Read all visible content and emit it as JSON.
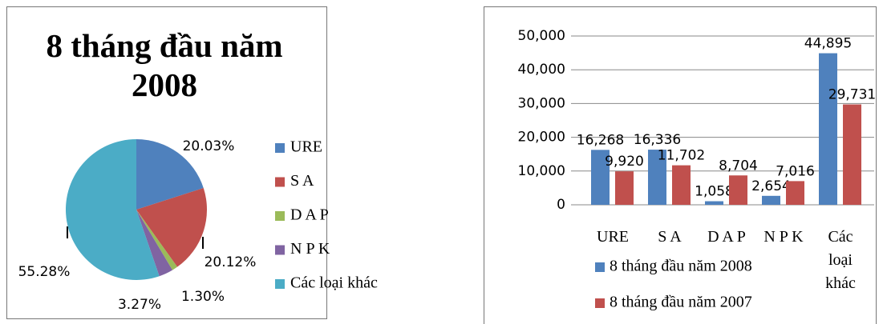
{
  "chart_data": [
    {
      "type": "pie",
      "title": "8 tháng đầu năm 2008",
      "categories": [
        "URE",
        "S A",
        "D A P",
        "N P K",
        "Các loại khác"
      ],
      "values": [
        20.03,
        20.12,
        1.3,
        3.27,
        55.28
      ],
      "value_labels": [
        "20.03%",
        "20.12%",
        "1.30%",
        "3.27%",
        "55.28%"
      ],
      "colors": [
        "#4F81BD",
        "#C0504D",
        "#9BBB59",
        "#8064A2",
        "#4BACC6"
      ],
      "legend": "right"
    },
    {
      "type": "bar",
      "categories": [
        "URE",
        "S A",
        "D A P",
        "N P K",
        "Các loại khác"
      ],
      "series": [
        {
          "name": "8 tháng đầu năm 2008",
          "color": "#4F81BD",
          "values": [
            16268,
            16336,
            1058,
            2654,
            44895
          ],
          "value_labels": [
            "16,268",
            "16,336",
            "1,058",
            "2,654",
            "44,895"
          ]
        },
        {
          "name": "8 tháng đầu năm 2007",
          "color": "#C0504D",
          "values": [
            9920,
            11702,
            8704,
            7016,
            29731
          ],
          "value_labels": [
            "9,920",
            "11,702",
            "8,704",
            "7,016",
            "29,731"
          ]
        }
      ],
      "ylim": [
        0,
        50000
      ],
      "yticks": [
        0,
        {
          "value": 10000,
          "label": "10,000"
        },
        {
          "value": 20000,
          "label": "20,000"
        },
        {
          "value": 30000,
          "label": "30,000"
        },
        {
          "value": 40000,
          "label": "40,000"
        },
        {
          "value": 50000,
          "label": "50,000"
        }
      ],
      "grid": true,
      "legend": "bottom"
    }
  ]
}
